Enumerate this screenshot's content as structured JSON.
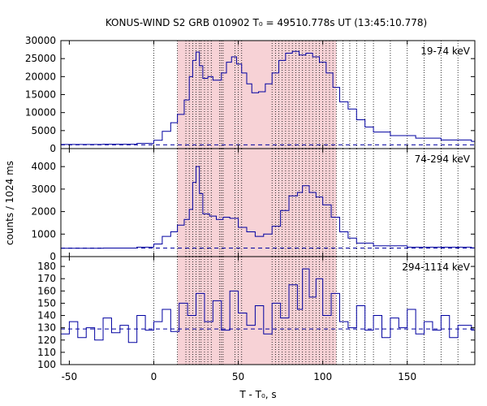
{
  "chart_data": {
    "type": "line",
    "title": "KONUS-WIND S2 GRB 010902 T₀ = 49510.778s UT (13:45:10.778)",
    "xlabel": "T - T₀, s",
    "ylabel": "counts / 1024 ms",
    "xlim": [
      -55,
      190
    ],
    "x_ticks": [
      -50,
      0,
      50,
      100,
      150
    ],
    "shaded_interval": [
      14,
      108
    ],
    "dotted_vertical_lines": [
      0,
      14,
      19,
      21,
      23,
      25,
      27,
      28,
      30,
      32,
      34,
      39,
      40,
      41,
      48,
      50,
      52,
      70,
      72,
      74,
      76,
      78,
      80,
      82,
      84,
      86,
      88,
      90,
      92,
      94,
      96,
      98,
      100,
      102,
      104,
      106,
      108,
      112,
      116,
      120,
      125,
      130,
      140,
      150,
      160,
      170,
      180
    ],
    "colors": {
      "series": "#0000a0",
      "shading": "#f7d2d6",
      "background_level": "#0000a0"
    },
    "panels": [
      {
        "label": "19-74 keV",
        "ylim": [
          0,
          30000
        ],
        "y_ticks": [
          0,
          5000,
          10000,
          15000,
          20000,
          25000,
          30000
        ],
        "background_level": 1050,
        "series": [
          [
            -55,
            1150
          ],
          [
            -30,
            1200
          ],
          [
            -10,
            1450
          ],
          [
            0,
            2300
          ],
          [
            5,
            4800
          ],
          [
            10,
            7200
          ],
          [
            14,
            9500
          ],
          [
            18,
            13500
          ],
          [
            21,
            20000
          ],
          [
            23,
            24500
          ],
          [
            25,
            26800
          ],
          [
            27,
            23000
          ],
          [
            29,
            19500
          ],
          [
            32,
            20000
          ],
          [
            35,
            19000
          ],
          [
            40,
            21000
          ],
          [
            43,
            24000
          ],
          [
            46,
            25500
          ],
          [
            49,
            23500
          ],
          [
            52,
            21000
          ],
          [
            55,
            18000
          ],
          [
            58,
            15500
          ],
          [
            62,
            15800
          ],
          [
            66,
            18000
          ],
          [
            70,
            21000
          ],
          [
            74,
            24500
          ],
          [
            78,
            26500
          ],
          [
            82,
            27000
          ],
          [
            86,
            26000
          ],
          [
            90,
            26500
          ],
          [
            94,
            25500
          ],
          [
            98,
            24000
          ],
          [
            102,
            21000
          ],
          [
            106,
            17000
          ],
          [
            110,
            13000
          ],
          [
            115,
            11000
          ],
          [
            120,
            8000
          ],
          [
            125,
            6000
          ],
          [
            130,
            4600
          ],
          [
            140,
            3600
          ],
          [
            155,
            2900
          ],
          [
            170,
            2400
          ],
          [
            188,
            2000
          ]
        ]
      },
      {
        "label": "74-294 keV",
        "ylim": [
          0,
          4800
        ],
        "y_ticks": [
          0,
          1000,
          2000,
          3000,
          4000
        ],
        "background_level": 380,
        "series": [
          [
            -55,
            370
          ],
          [
            -30,
            380
          ],
          [
            -10,
            420
          ],
          [
            0,
            560
          ],
          [
            5,
            900
          ],
          [
            10,
            1100
          ],
          [
            14,
            1400
          ],
          [
            18,
            1650
          ],
          [
            21,
            2100
          ],
          [
            23,
            3300
          ],
          [
            25,
            4000
          ],
          [
            27,
            2800
          ],
          [
            29,
            1900
          ],
          [
            33,
            1800
          ],
          [
            37,
            1650
          ],
          [
            41,
            1750
          ],
          [
            45,
            1700
          ],
          [
            50,
            1300
          ],
          [
            55,
            1100
          ],
          [
            60,
            900
          ],
          [
            65,
            1000
          ],
          [
            70,
            1350
          ],
          [
            75,
            2050
          ],
          [
            80,
            2700
          ],
          [
            85,
            2850
          ],
          [
            88,
            3150
          ],
          [
            92,
            2850
          ],
          [
            96,
            2650
          ],
          [
            100,
            2300
          ],
          [
            105,
            1750
          ],
          [
            110,
            1100
          ],
          [
            115,
            820
          ],
          [
            120,
            600
          ],
          [
            130,
            480
          ],
          [
            150,
            420
          ],
          [
            188,
            390
          ]
        ]
      },
      {
        "label": "294-1114 keV",
        "ylim": [
          100,
          188
        ],
        "y_ticks": [
          100,
          110,
          120,
          130,
          140,
          150,
          160,
          170,
          180
        ],
        "background_level": 129,
        "series": [
          [
            -55,
            125
          ],
          [
            -50,
            135
          ],
          [
            -45,
            122
          ],
          [
            -40,
            130
          ],
          [
            -35,
            120
          ],
          [
            -30,
            138
          ],
          [
            -25,
            126
          ],
          [
            -20,
            132
          ],
          [
            -15,
            118
          ],
          [
            -10,
            140
          ],
          [
            -5,
            128
          ],
          [
            0,
            135
          ],
          [
            5,
            145
          ],
          [
            10,
            127
          ],
          [
            15,
            150
          ],
          [
            20,
            140
          ],
          [
            25,
            158
          ],
          [
            30,
            135
          ],
          [
            35,
            152
          ],
          [
            40,
            128
          ],
          [
            45,
            160
          ],
          [
            50,
            142
          ],
          [
            55,
            132
          ],
          [
            60,
            148
          ],
          [
            65,
            125
          ],
          [
            70,
            150
          ],
          [
            75,
            138
          ],
          [
            80,
            165
          ],
          [
            85,
            145
          ],
          [
            88,
            178
          ],
          [
            92,
            155
          ],
          [
            96,
            170
          ],
          [
            100,
            140
          ],
          [
            105,
            158
          ],
          [
            110,
            135
          ],
          [
            115,
            130
          ],
          [
            120,
            148
          ],
          [
            125,
            128
          ],
          [
            130,
            140
          ],
          [
            135,
            122
          ],
          [
            140,
            138
          ],
          [
            145,
            130
          ],
          [
            150,
            145
          ],
          [
            155,
            125
          ],
          [
            160,
            135
          ],
          [
            165,
            128
          ],
          [
            170,
            140
          ],
          [
            175,
            122
          ],
          [
            180,
            132
          ],
          [
            188,
            128
          ]
        ]
      }
    ]
  }
}
